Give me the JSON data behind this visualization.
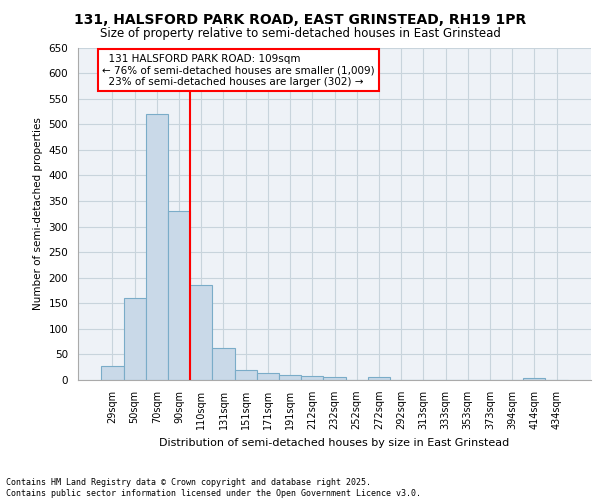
{
  "title_line1": "131, HALSFORD PARK ROAD, EAST GRINSTEAD, RH19 1PR",
  "title_line2": "Size of property relative to semi-detached houses in East Grinstead",
  "xlabel": "Distribution of semi-detached houses by size in East Grinstead",
  "ylabel": "Number of semi-detached properties",
  "categories": [
    "29sqm",
    "50sqm",
    "70sqm",
    "90sqm",
    "110sqm",
    "131sqm",
    "151sqm",
    "171sqm",
    "191sqm",
    "212sqm",
    "232sqm",
    "252sqm",
    "272sqm",
    "292sqm",
    "313sqm",
    "333sqm",
    "353sqm",
    "373sqm",
    "394sqm",
    "414sqm",
    "434sqm"
  ],
  "values": [
    27,
    160,
    520,
    330,
    185,
    62,
    20,
    13,
    10,
    7,
    5,
    0,
    5,
    0,
    0,
    0,
    0,
    0,
    0,
    4,
    0
  ],
  "bar_color": "#c9d9e8",
  "bar_edge_color": "#7aacc8",
  "property_bar_index": 3,
  "property_sqm": 109,
  "property_label": "131 HALSFORD PARK ROAD: 109sqm",
  "pct_smaller": 76,
  "n_smaller": 1009,
  "pct_larger": 23,
  "n_larger": 302,
  "annotation_box_color": "#cc0000",
  "ylim": [
    0,
    650
  ],
  "yticks": [
    0,
    50,
    100,
    150,
    200,
    250,
    300,
    350,
    400,
    450,
    500,
    550,
    600,
    650
  ],
  "grid_color": "#c8d4dc",
  "background_color": "#eef2f7",
  "footer_line1": "Contains HM Land Registry data © Crown copyright and database right 2025.",
  "footer_line2": "Contains public sector information licensed under the Open Government Licence v3.0."
}
